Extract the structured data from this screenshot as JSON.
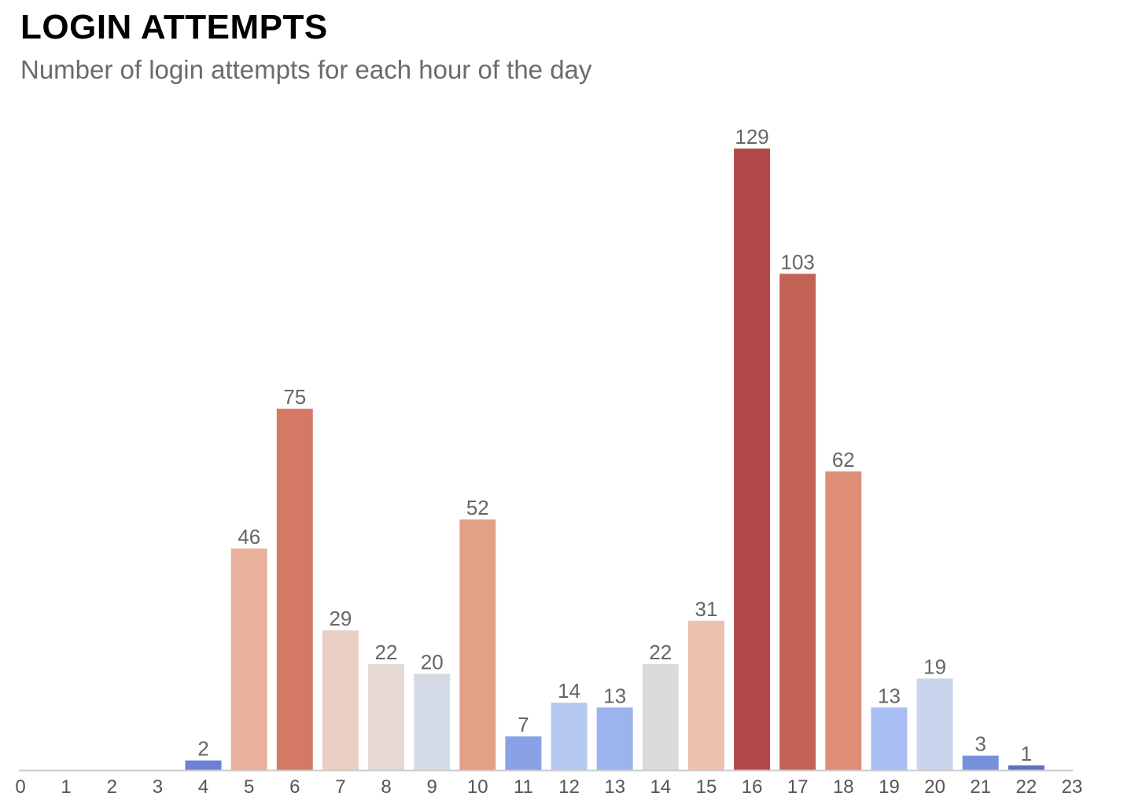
{
  "chart_data": {
    "type": "bar",
    "title": "LOGIN ATTEMPTS",
    "subtitle": "Number of login attempts for each hour of the day",
    "xlabel": "",
    "ylabel": "",
    "x_ticks": [
      "0",
      "1",
      "2",
      "3",
      "4",
      "5",
      "6",
      "7",
      "8",
      "9",
      "10",
      "11",
      "12",
      "13",
      "14",
      "15",
      "16",
      "17",
      "18",
      "19",
      "20",
      "21",
      "22",
      "23"
    ],
    "bars": [
      {
        "x": 4,
        "value": 2,
        "color": "#6c81d5"
      },
      {
        "x": 5,
        "value": 46,
        "color": "#e9b19b"
      },
      {
        "x": 6,
        "value": 75,
        "color": "#d37966"
      },
      {
        "x": 7,
        "value": 29,
        "color": "#e9cfc3"
      },
      {
        "x": 8,
        "value": 22,
        "color": "#e5d9d2"
      },
      {
        "x": 9,
        "value": 20,
        "color": "#d4dbe6"
      },
      {
        "x": 10,
        "value": 52,
        "color": "#e49f87"
      },
      {
        "x": 11,
        "value": 7,
        "color": "#8aa1e6"
      },
      {
        "x": 12,
        "value": 14,
        "color": "#b6c9ef"
      },
      {
        "x": 13,
        "value": 13,
        "color": "#9cb4ee"
      },
      {
        "x": 14,
        "value": 22,
        "color": "#dadada"
      },
      {
        "x": 15,
        "value": 31,
        "color": "#edc2ad"
      },
      {
        "x": 16,
        "value": 129,
        "color": "#b3484a"
      },
      {
        "x": 17,
        "value": 103,
        "color": "#c56257"
      },
      {
        "x": 18,
        "value": 62,
        "color": "#de8e77"
      },
      {
        "x": 19,
        "value": 13,
        "color": "#a8bdf2"
      },
      {
        "x": 20,
        "value": 19,
        "color": "#c8d5ec"
      },
      {
        "x": 21,
        "value": 3,
        "color": "#7790dd"
      },
      {
        "x": 22,
        "value": 1,
        "color": "#5e72c5"
      }
    ],
    "xlim": [
      0,
      23
    ],
    "ylim": [
      0,
      129
    ],
    "grid": false,
    "legend": "none",
    "axis_color": "#cccccc"
  }
}
